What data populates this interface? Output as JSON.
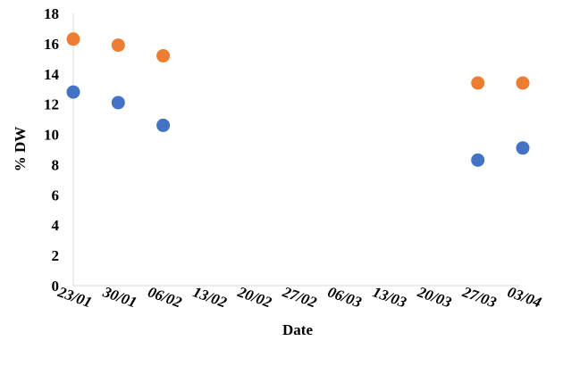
{
  "chart_data": {
    "type": "scatter",
    "xlabel": "Date",
    "ylabel": "% DW",
    "ylim": [
      0,
      18
    ],
    "y_ticks": [
      0,
      2,
      4,
      6,
      8,
      10,
      12,
      14,
      16,
      18
    ],
    "x_ticks": [
      "23/01",
      "30/01",
      "06/02",
      "13/02",
      "20/02",
      "27/02",
      "06/03",
      "13/03",
      "20/03",
      "27/03",
      "03/04"
    ],
    "grid": false,
    "legend": "none",
    "series": [
      {
        "color": "#ed7d31",
        "points": [
          {
            "x": "23/01",
            "y": 16.3
          },
          {
            "x": "30/01",
            "y": 15.9
          },
          {
            "x": "06/02",
            "y": 15.2
          },
          {
            "x": "27/03",
            "y": 13.4
          },
          {
            "x": "03/04",
            "y": 13.4
          }
        ]
      },
      {
        "color": "#4472c4",
        "points": [
          {
            "x": "23/01",
            "y": 12.8
          },
          {
            "x": "30/01",
            "y": 12.1
          },
          {
            "x": "06/02",
            "y": 10.6
          },
          {
            "x": "27/03",
            "y": 8.3
          },
          {
            "x": "03/04",
            "y": 9.1
          }
        ]
      }
    ]
  }
}
